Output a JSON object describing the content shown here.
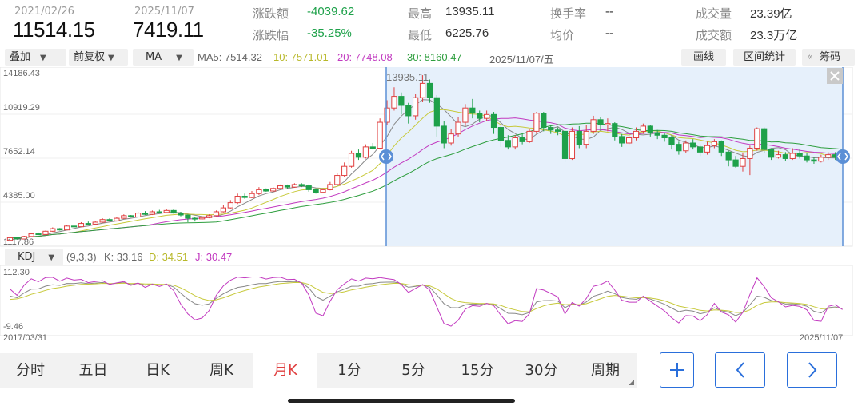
{
  "header": {
    "start_date": "2021/02/26",
    "start_price": "11514.15",
    "end_date": "2025/11/07",
    "end_price": "7419.11",
    "stats": [
      {
        "label": "涨跌额",
        "value": "-4039.62"
      },
      {
        "label": "涨跌幅",
        "value": "-35.25%"
      },
      {
        "label": "最高",
        "value": "13935.11"
      },
      {
        "label": "最低",
        "value": "6225.76"
      },
      {
        "label": "换手率",
        "value": "--"
      },
      {
        "label": "均价",
        "value": "--"
      },
      {
        "label": "成交量",
        "value": "23.39亿"
      },
      {
        "label": "成交额",
        "value": "23.3万亿"
      }
    ]
  },
  "toolbar": {
    "overlay": "叠加",
    "adjust": "前复权",
    "indicator": "MA",
    "ma5": "MA5: 7514.32",
    "ma10": "10: 7571.01",
    "ma20": "20: 7748.08",
    "ma30": "30: 8160.47",
    "cursor_date": "2025/11/07/五",
    "draw_line": "画线",
    "range_stats": "区间统计",
    "chips": "筹码",
    "chips_arrow": "«"
  },
  "main_chart": {
    "y_ticks": [
      "14186.43",
      "10919.29",
      "7652.14",
      "4385.00",
      "1117.86"
    ],
    "peak_label": "13935.11"
  },
  "kdj": {
    "name": "KDJ",
    "params": "(9,3,3)",
    "k": "K: 33.16",
    "d": "D: 34.51",
    "j": "J: 30.47",
    "y_top": "112.30",
    "y_bottom": "-9.46",
    "x_start": "2017/03/31",
    "x_end": "2025/11/07"
  },
  "tabs": [
    {
      "label": "分时",
      "active": false
    },
    {
      "label": "五日",
      "active": false
    },
    {
      "label": "日K",
      "active": false
    },
    {
      "label": "周K",
      "active": false
    },
    {
      "label": "月K",
      "active": true
    },
    {
      "label": "1分",
      "active": false
    },
    {
      "label": "5分",
      "active": false
    },
    {
      "label": "15分",
      "active": false
    },
    {
      "label": "30分",
      "active": false
    },
    {
      "label": "周期",
      "active": false
    }
  ],
  "nav": {
    "zoom_in": "+",
    "prev": "‹",
    "next": "›"
  },
  "colors": {
    "up": "#e04040",
    "down": "#1ea14a",
    "ma5": "#888888",
    "ma10": "#c7c93a",
    "ma20": "#c23ac0",
    "ma30": "#2e9e3e",
    "selection": "#e6f0fb",
    "selection_border": "#5b8fd6",
    "accent": "#2a6fdb"
  },
  "chart_data": {
    "type": "candlestick",
    "ylim": [
      1117.86,
      14186.43
    ],
    "candles": [
      [
        1200,
        1400,
        1150,
        1450
      ],
      [
        1400,
        1300,
        1250,
        1450
      ],
      [
        1300,
        1500,
        1280,
        1550
      ],
      [
        1500,
        1700,
        1450,
        1750
      ],
      [
        1700,
        1650,
        1600,
        1800
      ],
      [
        1650,
        1900,
        1620,
        1950
      ],
      [
        1900,
        2100,
        1850,
        2200
      ],
      [
        2100,
        2000,
        1950,
        2150
      ],
      [
        2000,
        2300,
        1980,
        2350
      ],
      [
        2300,
        2250,
        2200,
        2400
      ],
      [
        2250,
        2500,
        2230,
        2600
      ],
      [
        2500,
        2450,
        2400,
        2650
      ],
      [
        2450,
        2600,
        2400,
        2700
      ],
      [
        2600,
        2800,
        2550,
        2900
      ],
      [
        2800,
        2700,
        2650,
        2900
      ],
      [
        2700,
        2900,
        2650,
        3000
      ],
      [
        2900,
        3100,
        2850,
        3200
      ],
      [
        3100,
        3000,
        2950,
        3150
      ],
      [
        3000,
        3300,
        2980,
        3400
      ],
      [
        3300,
        3200,
        3150,
        3450
      ],
      [
        3200,
        3400,
        3150,
        3500
      ],
      [
        3400,
        3350,
        3300,
        3550
      ],
      [
        3350,
        3500,
        3300,
        3600
      ],
      [
        3500,
        3300,
        3250,
        3600
      ],
      [
        3300,
        3150,
        3050,
        3400
      ],
      [
        3150,
        2900,
        2600,
        3200
      ],
      [
        2900,
        2850,
        2650,
        3000
      ],
      [
        2850,
        2950,
        2800,
        3050
      ],
      [
        2950,
        3100,
        2900,
        3200
      ],
      [
        3100,
        3400,
        3050,
        3500
      ],
      [
        3400,
        3700,
        3350,
        3900
      ],
      [
        3700,
        4100,
        3650,
        4300
      ],
      [
        4100,
        4600,
        4000,
        4800
      ],
      [
        4600,
        4500,
        4400,
        4800
      ],
      [
        4500,
        4800,
        4450,
        5000
      ],
      [
        4800,
        5100,
        4700,
        5300
      ],
      [
        5100,
        5000,
        4950,
        5200
      ],
      [
        5000,
        5200,
        4950,
        5300
      ],
      [
        5200,
        5400,
        5150,
        5500
      ],
      [
        5400,
        5300,
        5200,
        5500
      ],
      [
        5300,
        5500,
        5250,
        5600
      ],
      [
        5500,
        5400,
        5300,
        5600
      ],
      [
        5400,
        5100,
        4950,
        5500
      ],
      [
        5100,
        4900,
        4800,
        5200
      ],
      [
        4900,
        5100,
        4850,
        5200
      ],
      [
        5100,
        5500,
        5050,
        5700
      ],
      [
        5500,
        6200,
        5450,
        6400
      ],
      [
        6200,
        6900,
        6100,
        7200
      ],
      [
        6900,
        7900,
        6800,
        8100
      ],
      [
        7900,
        7600,
        7400,
        8200
      ],
      [
        7600,
        8400,
        7500,
        8600
      ],
      [
        8400,
        8300,
        8200,
        8700
      ],
      [
        8300,
        10300,
        8200,
        10600
      ],
      [
        10300,
        11400,
        10100,
        12000
      ],
      [
        11400,
        12300,
        11200,
        13000
      ],
      [
        12300,
        11600,
        10900,
        12600
      ],
      [
        11600,
        10800,
        10200,
        11800
      ],
      [
        10800,
        12200,
        10500,
        12500
      ],
      [
        12200,
        13300,
        11900,
        13935
      ],
      [
        13300,
        12200,
        11800,
        13600
      ],
      [
        12200,
        10000,
        9200,
        12400
      ],
      [
        10000,
        8700,
        8300,
        10400
      ],
      [
        8700,
        9400,
        8500,
        9800
      ],
      [
        9400,
        10300,
        9200,
        10700
      ],
      [
        10300,
        11400,
        10000,
        11700
      ],
      [
        11400,
        11000,
        10600,
        12100
      ],
      [
        11000,
        10600,
        10300,
        11200
      ],
      [
        10600,
        10900,
        10400,
        11200
      ],
      [
        10900,
        9900,
        9400,
        11100
      ],
      [
        9900,
        8900,
        8400,
        10100
      ],
      [
        8900,
        8400,
        8200,
        9300
      ],
      [
        8400,
        9100,
        8200,
        9300
      ],
      [
        9100,
        8800,
        8600,
        9400
      ],
      [
        8800,
        9600,
        8700,
        9800
      ],
      [
        9600,
        11000,
        9400,
        11100
      ],
      [
        11000,
        9900,
        9600,
        11100
      ],
      [
        9900,
        9700,
        9400,
        10100
      ],
      [
        9700,
        9600,
        9300,
        9900
      ],
      [
        9600,
        7500,
        7200,
        9700
      ],
      [
        7500,
        9600,
        7400,
        9900
      ],
      [
        9600,
        8600,
        8300,
        10000
      ],
      [
        8600,
        9600,
        8300,
        10100
      ],
      [
        9600,
        10500,
        9400,
        10800
      ],
      [
        10500,
        10100,
        9700,
        10700
      ],
      [
        10100,
        10200,
        9600,
        10600
      ],
      [
        10200,
        9200,
        8900,
        10300
      ],
      [
        9200,
        8700,
        8400,
        9400
      ],
      [
        8700,
        9100,
        8600,
        9300
      ],
      [
        9100,
        9600,
        8900,
        9900
      ],
      [
        9600,
        10000,
        9400,
        10200
      ],
      [
        10000,
        9500,
        9200,
        10100
      ],
      [
        9500,
        9300,
        9000,
        9700
      ],
      [
        9300,
        9100,
        8800,
        9500
      ],
      [
        9100,
        8600,
        8200,
        9300
      ],
      [
        8600,
        8100,
        7800,
        8800
      ],
      [
        8100,
        8700,
        7900,
        8900
      ],
      [
        8700,
        8400,
        8200,
        9000
      ],
      [
        8400,
        8000,
        7700,
        8600
      ],
      [
        8000,
        8500,
        7800,
        8800
      ],
      [
        8500,
        8800,
        8300,
        9000
      ],
      [
        8800,
        8000,
        7700,
        8900
      ],
      [
        8000,
        7400,
        6900,
        8100
      ],
      [
        7400,
        6900,
        6800,
        7700
      ],
      [
        6900,
        7500,
        6500,
        7900
      ],
      [
        7500,
        8300,
        6226,
        8500
      ],
      [
        8300,
        9800,
        8100,
        9900
      ],
      [
        9800,
        8200,
        7900,
        9900
      ],
      [
        8200,
        7600,
        7400,
        8300
      ],
      [
        7600,
        7800,
        7500,
        8100
      ],
      [
        7800,
        7500,
        7300,
        8000
      ],
      [
        7500,
        7900,
        7400,
        8300
      ],
      [
        7900,
        7700,
        7500,
        8200
      ],
      [
        7700,
        7400,
        7200,
        7900
      ],
      [
        7400,
        7300,
        7100,
        7600
      ],
      [
        7300,
        7600,
        7200,
        7800
      ],
      [
        7600,
        7800,
        7400,
        8000
      ],
      [
        7800,
        7600,
        7400,
        8000
      ],
      [
        7600,
        7419,
        7300,
        7800
      ]
    ]
  }
}
